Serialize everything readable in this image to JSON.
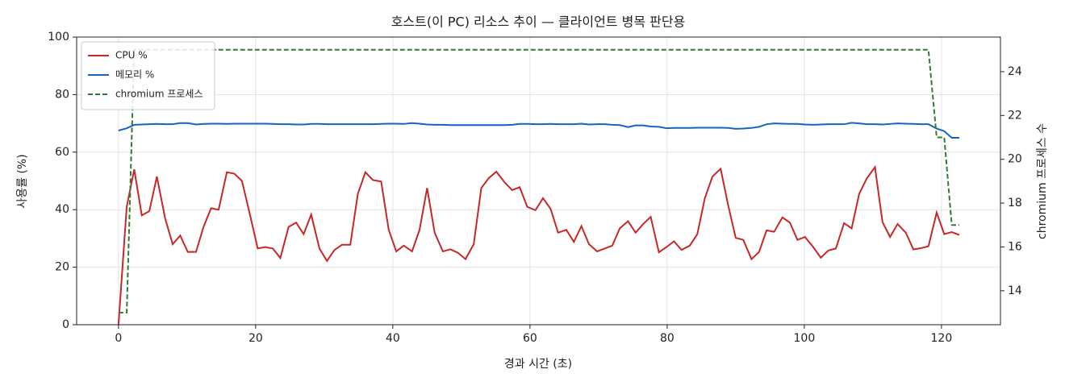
{
  "chart_data": {
    "type": "line",
    "title": "호스트(이 PC) 리소스 추이 — 클라이언트 병목 판단용",
    "xlabel": "경과 시간 (초)",
    "ylabel": "사용률 (%)",
    "y2label": "chromium 프로세스 수",
    "x": [
      0,
      1.2,
      2.3,
      3.4,
      4.5,
      5.6,
      6.8,
      7.9,
      9,
      10.1,
      11.3,
      12.4,
      13.5,
      14.6,
      15.8,
      16.9,
      18,
      19.1,
      20.3,
      21.4,
      22.5,
      23.6,
      24.8,
      25.9,
      27,
      28.1,
      29.3,
      30.4,
      31.5,
      32.6,
      33.8,
      34.9,
      36,
      37.1,
      38.3,
      39.4,
      40.5,
      41.6,
      42.8,
      43.9,
      45,
      46.1,
      47.3,
      48.4,
      49.5,
      50.6,
      51.8,
      52.9,
      54,
      55.1,
      56.3,
      57.4,
      58.5,
      59.6,
      60.8,
      61.9,
      63,
      64.1,
      65.3,
      66.4,
      67.5,
      68.6,
      69.8,
      70.9,
      72,
      73.1,
      74.3,
      75.4,
      76.5,
      77.6,
      78.8,
      79.9,
      81,
      82.1,
      83.3,
      84.4,
      85.5,
      86.6,
      87.8,
      88.9,
      90,
      91.1,
      92.3,
      93.4,
      94.5,
      95.6,
      96.8,
      97.9,
      99,
      100.1,
      101.3,
      102.4,
      103.5,
      104.6,
      105.8,
      106.9,
      108,
      109.1,
      110.3,
      111.4,
      112.5,
      113.6,
      114.8,
      115.9,
      117,
      118.1,
      119.3,
      120.4,
      121.5,
      122.6
    ],
    "series": [
      {
        "name": "CPU %",
        "color": "#c62828",
        "values": [
          0,
          41,
          54,
          38,
          39.5,
          51.5,
          37,
          28,
          31,
          25.3,
          25.3,
          34,
          40.5,
          40,
          53,
          52.5,
          50,
          39,
          26.5,
          27,
          26.5,
          23.2,
          34,
          35.5,
          31.5,
          38.3,
          26.5,
          22.2,
          26,
          27.8,
          27.8,
          45.5,
          53,
          50.3,
          49.8,
          33,
          25.5,
          27.5,
          25.5,
          33,
          47.5,
          32,
          25.5,
          26.2,
          25,
          22.8,
          28,
          47.5,
          51,
          53.2,
          49.5,
          46.8,
          47.8,
          41,
          39.8,
          44,
          40.3,
          32,
          33,
          28.8,
          34.3,
          28,
          25.5,
          26.5,
          27.5,
          33.5,
          36,
          32,
          35,
          37.5,
          25.2,
          27,
          29,
          26,
          27.5,
          31.5,
          44,
          51.5,
          54.2,
          41.5,
          30.2,
          29.5,
          22.8,
          25.3,
          32.8,
          32.3,
          37.3,
          35.5,
          29.5,
          30.5,
          27,
          23.3,
          25.8,
          26.5,
          35.3,
          33.5,
          45.5,
          50.8,
          54.8,
          35.7,
          30.5,
          35,
          32,
          26.2,
          26.6,
          27.3,
          39,
          31.5,
          32.2,
          31.2
        ]
      },
      {
        "name": "메모리 %",
        "color": "#1565c0",
        "values": [
          67.5,
          68.3,
          69.5,
          69.6,
          69.7,
          69.8,
          69.7,
          69.7,
          70.1,
          70.1,
          69.6,
          69.8,
          69.9,
          69.9,
          69.8,
          69.9,
          69.9,
          69.9,
          69.9,
          69.9,
          69.8,
          69.7,
          69.7,
          69.6,
          69.6,
          69.8,
          69.8,
          69.7,
          69.7,
          69.7,
          69.7,
          69.7,
          69.7,
          69.7,
          69.8,
          69.9,
          69.9,
          69.8,
          70.1,
          69.9,
          69.6,
          69.5,
          69.5,
          69.4,
          69.4,
          69.4,
          69.4,
          69.4,
          69.4,
          69.4,
          69.4,
          69.5,
          69.8,
          69.8,
          69.7,
          69.7,
          69.8,
          69.7,
          69.7,
          69.7,
          69.9,
          69.6,
          69.7,
          69.7,
          69.5,
          69.4,
          68.7,
          69.3,
          69.3,
          68.9,
          68.8,
          68.3,
          68.4,
          68.4,
          68.4,
          68.5,
          68.5,
          68.5,
          68.5,
          68.4,
          68.1,
          68.2,
          68.4,
          68.8,
          69.7,
          70,
          69.9,
          69.8,
          69.8,
          69.6,
          69.5,
          69.6,
          69.7,
          69.7,
          69.7,
          70.2,
          70,
          69.7,
          69.7,
          69.6,
          69.8,
          70,
          69.9,
          69.8,
          69.7,
          69.7,
          68.2,
          67.3,
          65,
          65
        ]
      },
      {
        "name": "chromium 프로세스",
        "color": "#2e7d32",
        "dash": true,
        "axis": "y2",
        "values": [
          13,
          13,
          25,
          25,
          25,
          25,
          25,
          25,
          25,
          25,
          25,
          25,
          25,
          25,
          25,
          25,
          25,
          25,
          25,
          25,
          25,
          25,
          25,
          25,
          25,
          25,
          25,
          25,
          25,
          25,
          25,
          25,
          25,
          25,
          25,
          25,
          25,
          25,
          25,
          25,
          25,
          25,
          25,
          25,
          25,
          25,
          25,
          25,
          25,
          25,
          25,
          25,
          25,
          25,
          25,
          25,
          25,
          25,
          25,
          25,
          25,
          25,
          25,
          25,
          25,
          25,
          25,
          25,
          25,
          25,
          25,
          25,
          25,
          25,
          25,
          25,
          25,
          25,
          25,
          25,
          25,
          25,
          25,
          25,
          25,
          25,
          25,
          25,
          25,
          25,
          25,
          25,
          25,
          25,
          25,
          25,
          25,
          25,
          25,
          25,
          25,
          25,
          25,
          25,
          25,
          25,
          21,
          21,
          17,
          17
        ]
      }
    ],
    "xlim": [
      -6.1,
      128.6
    ],
    "xticks": [
      0,
      20,
      40,
      60,
      80,
      100,
      120
    ],
    "ylim": [
      0,
      100
    ],
    "yticks": [
      0,
      20,
      40,
      60,
      80,
      100
    ],
    "y2lim": [
      12.45,
      25.58
    ],
    "y2ticks": [
      14,
      16,
      18,
      20,
      22,
      24
    ],
    "grid": true,
    "legend": "upper left"
  }
}
